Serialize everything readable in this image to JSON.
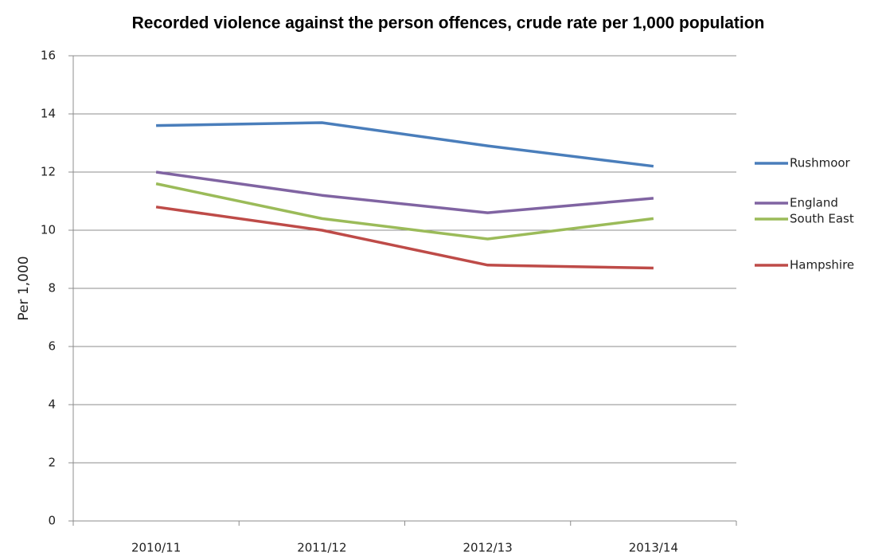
{
  "chart_data": {
    "type": "line",
    "title": "Recorded violence against the person offences, crude rate per 1,000 population",
    "y_label": "Per 1,000",
    "categories": [
      "2010/11",
      "2011/12",
      "2012/13",
      "2013/14"
    ],
    "series": [
      {
        "name": "Rushmoor",
        "color": "#4a7ebb",
        "values": [
          13.6,
          13.7,
          12.9,
          12.2
        ]
      },
      {
        "name": "England",
        "color": "#8064a2",
        "values": [
          12.0,
          11.2,
          10.6,
          11.1
        ]
      },
      {
        "name": "South East",
        "color": "#9bbb59",
        "values": [
          11.6,
          10.4,
          9.7,
          10.4
        ]
      },
      {
        "name": "Hampshire",
        "color": "#be4b48",
        "values": [
          10.8,
          10.0,
          8.8,
          8.7
        ]
      }
    ],
    "ylim": [
      0,
      16
    ],
    "yticks": [
      0,
      2,
      4,
      6,
      8,
      10,
      12,
      14,
      16
    ],
    "grid": true,
    "legend": "right"
  }
}
